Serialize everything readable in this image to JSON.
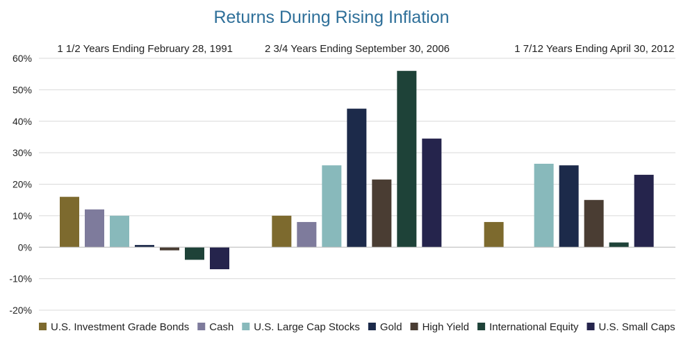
{
  "chart_data": {
    "type": "bar",
    "title": "Returns During Rising Inflation",
    "xlabel": "",
    "ylabel": "",
    "ylim": [
      -20,
      60
    ],
    "yticks": [
      -20,
      -10,
      0,
      10,
      20,
      30,
      40,
      50,
      60
    ],
    "ytick_labels": [
      "-20%",
      "-10%",
      "0%",
      "10%",
      "20%",
      "30%",
      "40%",
      "50%",
      "60%"
    ],
    "grid": true,
    "legend_position": "bottom",
    "categories": [
      "1 1/2 Years Ending February 28, 1991",
      "2 3/4 Years Ending September 30, 2006",
      "1 7/12 Years Ending April 30, 2012"
    ],
    "series": [
      {
        "name": "U.S. Investment Grade Bonds",
        "color": "#7d6a2e",
        "values": [
          16,
          10,
          8
        ]
      },
      {
        "name": "Cash",
        "color": "#7e7b9c",
        "values": [
          12,
          8,
          0
        ]
      },
      {
        "name": "U.S. Large Cap Stocks",
        "color": "#88b9bb",
        "values": [
          10,
          26,
          26.5
        ]
      },
      {
        "name": "Gold",
        "color": "#1c2a4a",
        "values": [
          0.7,
          44,
          26
        ]
      },
      {
        "name": "High Yield",
        "color": "#4a3d33",
        "values": [
          -1,
          21.5,
          15
        ]
      },
      {
        "name": "International Equity",
        "color": "#1e4238",
        "values": [
          -4,
          56,
          1.5
        ]
      },
      {
        "name": "U.S. Small Caps",
        "color": "#25244c",
        "values": [
          -7,
          34.5,
          23
        ]
      }
    ]
  }
}
